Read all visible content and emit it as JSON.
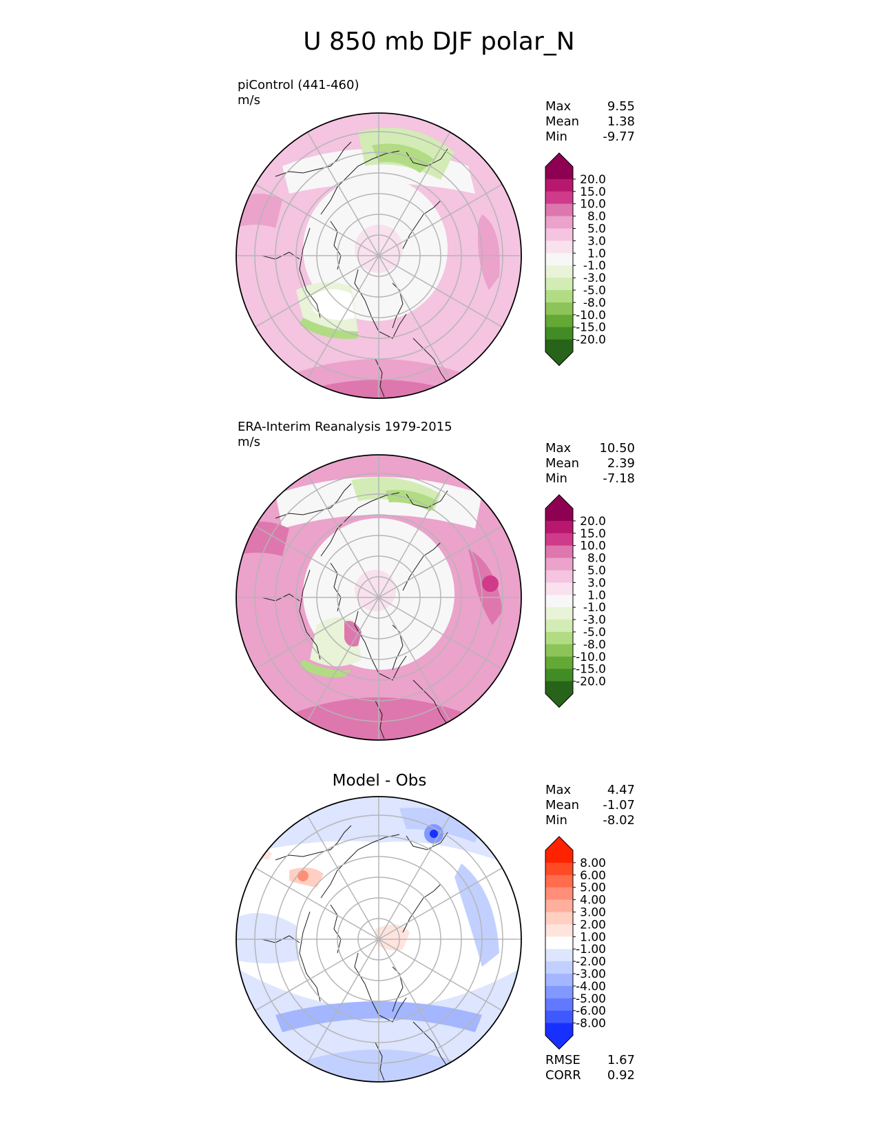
{
  "figure": {
    "title": "U 850 mb DJF polar_N"
  },
  "panels": [
    {
      "id": "model",
      "title": "piControl (441-460)",
      "units": "m/s",
      "stats": {
        "max_label": "Max",
        "max": "9.55",
        "mean_label": "Mean",
        "mean": "1.38",
        "min_label": "Min",
        "min": "-9.77"
      },
      "colormap": "pink-green",
      "levels": [
        "20.0",
        "15.0",
        "10.0",
        "8.0",
        "5.0",
        "3.0",
        "1.0",
        "-1.0",
        "-3.0",
        "-5.0",
        "-8.0",
        "-10.0",
        "-15.0",
        "-20.0"
      ]
    },
    {
      "id": "obs",
      "title": "ERA-Interim Reanalysis 1979-2015",
      "units": "m/s",
      "stats": {
        "max_label": "Max",
        "max": "10.50",
        "mean_label": "Mean",
        "mean": "2.39",
        "min_label": "Min",
        "min": "-7.18"
      },
      "colormap": "pink-green",
      "levels": [
        "20.0",
        "15.0",
        "10.0",
        "8.0",
        "5.0",
        "3.0",
        "1.0",
        "-1.0",
        "-3.0",
        "-5.0",
        "-8.0",
        "-10.0",
        "-15.0",
        "-20.0"
      ]
    },
    {
      "id": "diff",
      "title": "Model - Obs",
      "stats": {
        "max_label": "Max",
        "max": "4.47",
        "mean_label": "Mean",
        "mean": "-1.07",
        "min_label": "Min",
        "min": "-8.02"
      },
      "colormap": "red-blue",
      "levels": [
        "8.00",
        "6.00",
        "5.00",
        "4.00",
        "3.00",
        "2.00",
        "1.00",
        "-1.00",
        "-2.00",
        "-3.00",
        "-4.00",
        "-5.00",
        "-6.00",
        "-8.00"
      ],
      "footer": {
        "rmse_label": "RMSE",
        "rmse": "1.67",
        "corr_label": "CORR",
        "corr": "0.92"
      }
    }
  ],
  "colors": {
    "pink_green": [
      "#8e0152",
      "#b8176e",
      "#d03a8a",
      "#de77ae",
      "#eba2cb",
      "#f4c4e0",
      "#f9e1ee",
      "#f7f7f7",
      "#e8f3d8",
      "#d3ebb5",
      "#b1dc83",
      "#8dc45a",
      "#64a836",
      "#418c25",
      "#276419"
    ],
    "red_blue": [
      "#ff2200",
      "#ff4a26",
      "#ff6c4e",
      "#ff8e78",
      "#ffaf9d",
      "#ffcfc2",
      "#ffe4dd",
      "#ffffff",
      "#dde5ff",
      "#c2d0ff",
      "#a3b6ff",
      "#8198ff",
      "#6279ff",
      "#3f59ff",
      "#1830ff"
    ],
    "grid": "#b5b5b5"
  },
  "chart_data": [
    {
      "type": "heatmap",
      "projection": "polar_stereographic_north",
      "field": "U 850 mb",
      "season": "DJF",
      "title": "piControl (441-460)",
      "units": "m/s",
      "stats": {
        "max": 9.55,
        "mean": 1.38,
        "min": -9.77
      },
      "contour_levels": [
        -20,
        -15,
        -10,
        -8,
        -5,
        -3,
        -1,
        1,
        3,
        5,
        8,
        10,
        15,
        20
      ],
      "colorbar_extend": "both",
      "grid": true,
      "colorbar_position": "right"
    },
    {
      "type": "heatmap",
      "projection": "polar_stereographic_north",
      "field": "U 850 mb",
      "season": "DJF",
      "title": "ERA-Interim Reanalysis 1979-2015",
      "units": "m/s",
      "stats": {
        "max": 10.5,
        "mean": 2.39,
        "min": -7.18
      },
      "contour_levels": [
        -20,
        -15,
        -10,
        -8,
        -5,
        -3,
        -1,
        1,
        3,
        5,
        8,
        10,
        15,
        20
      ],
      "colorbar_extend": "both",
      "grid": true,
      "colorbar_position": "right"
    },
    {
      "type": "heatmap",
      "projection": "polar_stereographic_north",
      "field": "U 850 mb",
      "season": "DJF",
      "title": "Model - Obs",
      "stats": {
        "max": 4.47,
        "mean": -1.07,
        "min": -8.02,
        "rmse": 1.67,
        "corr": 0.92
      },
      "contour_levels": [
        -8,
        -6,
        -5,
        -4,
        -3,
        -2,
        -1,
        1,
        2,
        3,
        4,
        5,
        6,
        8
      ],
      "colorbar_extend": "both",
      "grid": true,
      "colorbar_position": "right"
    }
  ]
}
